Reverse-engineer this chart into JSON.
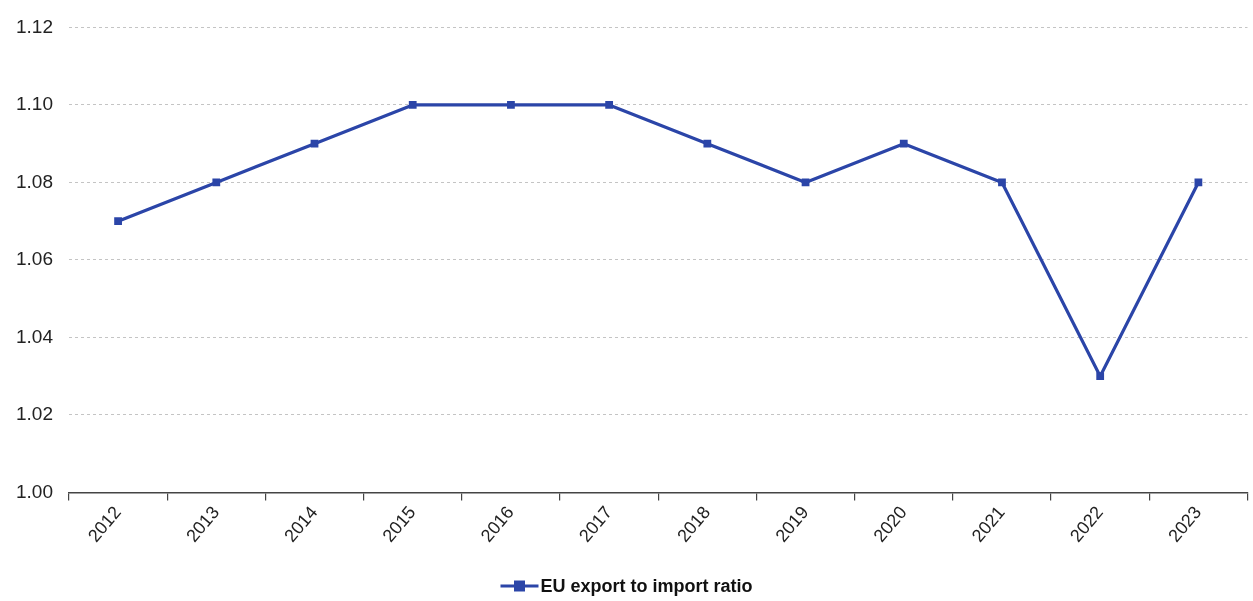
{
  "chart_data": {
    "type": "line",
    "categories": [
      "2012",
      "2013",
      "2014",
      "2015",
      "2016",
      "2017",
      "2018",
      "2019",
      "2020",
      "2021",
      "2022",
      "2023"
    ],
    "series": [
      {
        "name": "EU export to import ratio",
        "color": "#2b45a8",
        "values": [
          1.07,
          1.08,
          1.09,
          1.1,
          1.1,
          1.1,
          1.09,
          1.08,
          1.09,
          1.08,
          1.03,
          1.08
        ]
      }
    ],
    "ylim": [
      1.0,
      1.12
    ],
    "yticks": [
      {
        "value": 1.0,
        "label": "1.00"
      },
      1.02,
      1.04,
      1.06,
      1.08,
      {
        "value": 1.1,
        "label": "1.10"
      },
      1.12
    ],
    "grid": "y",
    "legend": "bottom",
    "marker": "square",
    "line_style": "solid"
  }
}
